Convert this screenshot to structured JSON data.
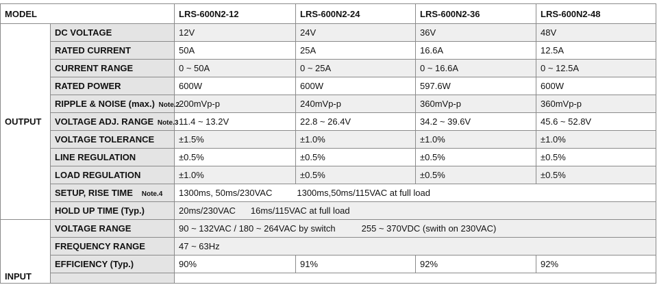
{
  "header": {
    "model_label": "MODEL",
    "models": [
      "LRS-600N2-12",
      "LRS-600N2-24",
      "LRS-600N2-36",
      "LRS-600N2-48"
    ]
  },
  "output": {
    "section_label": "OUTPUT",
    "dc_voltage": {
      "label": "DC VOLTAGE",
      "values": [
        "12V",
        "24V",
        "36V",
        "48V"
      ]
    },
    "rated_current": {
      "label": "RATED CURRENT",
      "values": [
        "50A",
        "25A",
        "16.6A",
        "12.5A"
      ]
    },
    "current_range": {
      "label": "CURRENT RANGE",
      "values": [
        "0 ~ 50A",
        "0 ~ 25A",
        "0 ~ 16.6A",
        "0 ~ 12.5A"
      ]
    },
    "rated_power": {
      "label": "RATED POWER",
      "values": [
        "600W",
        "600W",
        "597.6W",
        "600W"
      ]
    },
    "ripple_noise": {
      "label": "RIPPLE & NOISE (max.)",
      "note": "Note.2",
      "values": [
        "200mVp-p",
        "240mVp-p",
        "360mVp-p",
        "360mVp-p"
      ]
    },
    "voltage_adj_range": {
      "label": "VOLTAGE ADJ. RANGE",
      "note": "Note.3",
      "values": [
        "11.4 ~ 13.2V",
        "22.8 ~ 26.4V",
        "34.2 ~ 39.6V",
        "45.6 ~ 52.8V"
      ]
    },
    "voltage_tolerance": {
      "label": "VOLTAGE TOLERANCE",
      "values": [
        "±1.5%",
        "±1.0%",
        "±1.0%",
        "±1.0%"
      ]
    },
    "line_regulation": {
      "label": "LINE REGULATION",
      "values": [
        "±0.5%",
        "±0.5%",
        "±0.5%",
        "±0.5%"
      ]
    },
    "load_regulation": {
      "label": "LOAD REGULATION",
      "values": [
        "±1.0%",
        "±0.5%",
        "±0.5%",
        "±0.5%"
      ]
    },
    "setup_rise_time": {
      "label": "SETUP, RISE TIME",
      "note": "Note.4",
      "value_a": "1300ms, 50ms/230VAC",
      "value_b": "1300ms,50ms/115VAC  at full load"
    },
    "hold_up_time": {
      "label": "HOLD UP TIME (Typ.)",
      "value_a": "20ms/230VAC",
      "value_b": "16ms/115VAC at full load"
    }
  },
  "input": {
    "section_label": "INPUT",
    "voltage_range": {
      "label": "VOLTAGE RANGE",
      "value_a": "90 ~ 132VAC / 180 ~ 264VAC by switch",
      "value_b": "255 ~ 370VDC  (swith on 230VAC)"
    },
    "frequency_range": {
      "label": "FREQUENCY RANGE",
      "value": "47 ~ 63Hz"
    },
    "efficiency": {
      "label": "EFFICIENCY (Typ.)",
      "values": [
        "90%",
        "91%",
        "92%",
        "92%"
      ]
    }
  }
}
